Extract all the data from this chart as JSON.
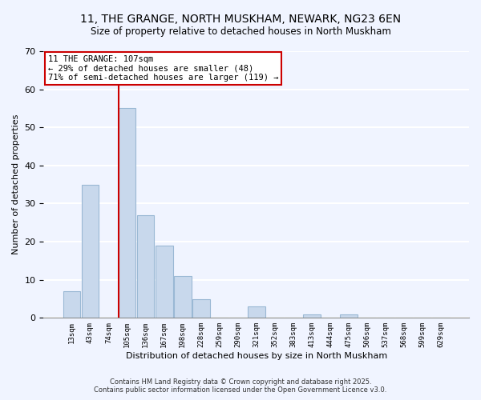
{
  "title": "11, THE GRANGE, NORTH MUSKHAM, NEWARK, NG23 6EN",
  "subtitle": "Size of property relative to detached houses in North Muskham",
  "xlabel": "Distribution of detached houses by size in North Muskham",
  "ylabel": "Number of detached properties",
  "bar_color": "#c8d8ec",
  "bar_edge_color": "#9ab8d4",
  "background_color": "#f0f4ff",
  "grid_color": "white",
  "categories": [
    "13sqm",
    "43sqm",
    "74sqm",
    "105sqm",
    "136sqm",
    "167sqm",
    "198sqm",
    "228sqm",
    "259sqm",
    "290sqm",
    "321sqm",
    "352sqm",
    "383sqm",
    "413sqm",
    "444sqm",
    "475sqm",
    "506sqm",
    "537sqm",
    "568sqm",
    "599sqm",
    "629sqm"
  ],
  "values": [
    7,
    35,
    0,
    55,
    27,
    19,
    11,
    5,
    0,
    0,
    3,
    0,
    0,
    1,
    0,
    1,
    0,
    0,
    0,
    0,
    0
  ],
  "ylim": [
    0,
    70
  ],
  "yticks": [
    0,
    10,
    20,
    30,
    40,
    50,
    60,
    70
  ],
  "vline_index": 3,
  "vline_color": "#cc0000",
  "annotation_line1": "11 THE GRANGE: 107sqm",
  "annotation_line2": "← 29% of detached houses are smaller (48)",
  "annotation_line3": "71% of semi-detached houses are larger (119) →",
  "annotation_box_color": "white",
  "annotation_box_edge": "#cc0000",
  "footer_line1": "Contains HM Land Registry data © Crown copyright and database right 2025.",
  "footer_line2": "Contains public sector information licensed under the Open Government Licence v3.0."
}
